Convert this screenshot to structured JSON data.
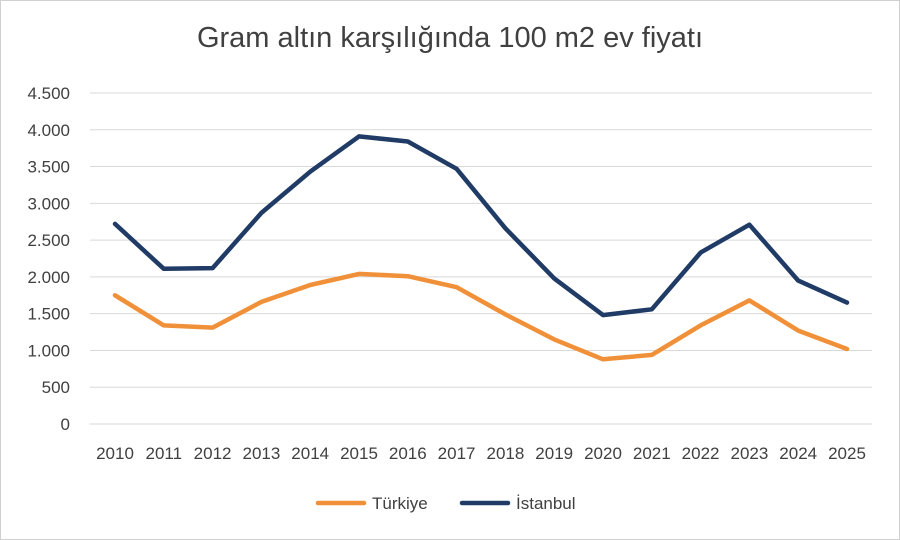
{
  "chart_data": {
    "type": "line",
    "title": "Gram altın karşılığında 100 m2 ev fiyatı",
    "categories": [
      "2010",
      "2011",
      "2012",
      "2013",
      "2014",
      "2015",
      "2016",
      "2017",
      "2018",
      "2019",
      "2020",
      "2021",
      "2022",
      "2023",
      "2024",
      "2025"
    ],
    "series": [
      {
        "name": "Türkiye",
        "color": "#F0913A",
        "values": [
          1750,
          1340,
          1310,
          1660,
          1890,
          2040,
          2010,
          1860,
          1490,
          1150,
          880,
          940,
          1340,
          1680,
          1270,
          1020
        ]
      },
      {
        "name": "İstanbul",
        "color": "#1F3B66",
        "values": [
          2720,
          2110,
          2120,
          2870,
          3430,
          3910,
          3840,
          3470,
          2660,
          1980,
          1480,
          1560,
          2330,
          2710,
          1950,
          1650
        ]
      }
    ],
    "yticks": [
      0,
      500,
      1000,
      1500,
      2000,
      2500,
      3000,
      3500,
      4000,
      4500
    ],
    "ytick_labels": [
      "0",
      "500",
      "1.000",
      "1.500",
      "2.000",
      "2.500",
      "3.000",
      "3.500",
      "4.000",
      "4.500"
    ],
    "ylim": [
      0,
      4500
    ],
    "grid": true,
    "legend": "bottom",
    "xlabel": "",
    "ylabel": ""
  }
}
